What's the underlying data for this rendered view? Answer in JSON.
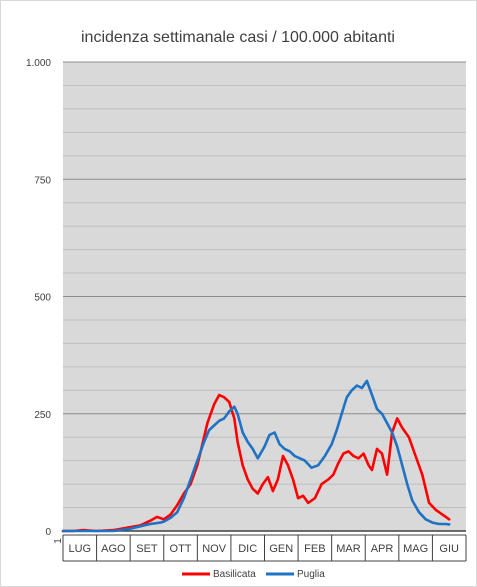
{
  "chart_data": {
    "type": "line",
    "title": "incidenza settimanale casi / 100.000 abitanti",
    "xlabel": "",
    "ylabel": "",
    "ylim": [
      0,
      1000
    ],
    "yticks": [
      0,
      250,
      500,
      750,
      1000
    ],
    "ytick_labels": [
      "0",
      "250",
      "500",
      "750",
      "1.000"
    ],
    "grid": true,
    "first_tick_label": "1",
    "categories": [
      "LUG",
      "AGO",
      "SET",
      "OTT",
      "NOV",
      "DIC",
      "GEN",
      "FEB",
      "MAR",
      "APR",
      "MAG",
      "GIU"
    ],
    "legend_position": "bottom",
    "series": [
      {
        "name": "Basilicata",
        "color": "#ff0000",
        "x": [
          0,
          0.3,
          0.6,
          1,
          1.5,
          2,
          2.3,
          2.6,
          2.8,
          3,
          3.2,
          3.4,
          3.6,
          3.8,
          4,
          4.15,
          4.3,
          4.5,
          4.65,
          4.8,
          4.95,
          5.1,
          5.2,
          5.35,
          5.5,
          5.65,
          5.8,
          5.95,
          6.1,
          6.25,
          6.4,
          6.55,
          6.7,
          6.85,
          7,
          7.15,
          7.3,
          7.5,
          7.7,
          7.9,
          8.05,
          8.2,
          8.35,
          8.5,
          8.65,
          8.8,
          8.95,
          9.1,
          9.2,
          9.35,
          9.5,
          9.65,
          9.8,
          9.95,
          10.1,
          10.3,
          10.5,
          10.7,
          10.9,
          11.1,
          11.3,
          11.5
        ],
        "y": [
          0,
          0,
          2,
          0,
          2,
          8,
          12,
          22,
          30,
          25,
          35,
          55,
          80,
          100,
          140,
          185,
          230,
          270,
          290,
          285,
          275,
          240,
          190,
          140,
          110,
          90,
          80,
          100,
          115,
          85,
          110,
          160,
          140,
          110,
          70,
          75,
          60,
          70,
          100,
          110,
          120,
          145,
          165,
          170,
          160,
          155,
          165,
          140,
          130,
          175,
          165,
          120,
          210,
          240,
          220,
          200,
          160,
          120,
          60,
          45,
          35,
          25
        ]
      },
      {
        "name": "Puglia",
        "color": "#1f72c4",
        "x": [
          0,
          0.5,
          1,
          1.5,
          2,
          2.3,
          2.6,
          2.9,
          3,
          3.2,
          3.4,
          3.6,
          3.8,
          4,
          4.2,
          4.35,
          4.5,
          4.65,
          4.8,
          4.95,
          5.1,
          5.2,
          5.35,
          5.5,
          5.65,
          5.8,
          6,
          6.15,
          6.3,
          6.45,
          6.6,
          6.75,
          6.9,
          7.05,
          7.2,
          7.4,
          7.6,
          7.8,
          8,
          8.15,
          8.3,
          8.45,
          8.6,
          8.75,
          8.9,
          9.05,
          9.2,
          9.35,
          9.5,
          9.65,
          9.8,
          9.95,
          10.1,
          10.25,
          10.4,
          10.6,
          10.8,
          11,
          11.2,
          11.4,
          11.5
        ],
        "y": [
          0,
          0,
          0,
          0,
          5,
          10,
          15,
          18,
          20,
          28,
          40,
          70,
          110,
          150,
          190,
          215,
          225,
          235,
          240,
          255,
          265,
          250,
          210,
          190,
          175,
          155,
          180,
          205,
          210,
          185,
          175,
          170,
          160,
          155,
          150,
          135,
          140,
          160,
          185,
          215,
          250,
          285,
          300,
          310,
          305,
          320,
          290,
          260,
          250,
          230,
          210,
          180,
          140,
          100,
          65,
          40,
          25,
          18,
          15,
          15,
          14
        ]
      }
    ]
  }
}
